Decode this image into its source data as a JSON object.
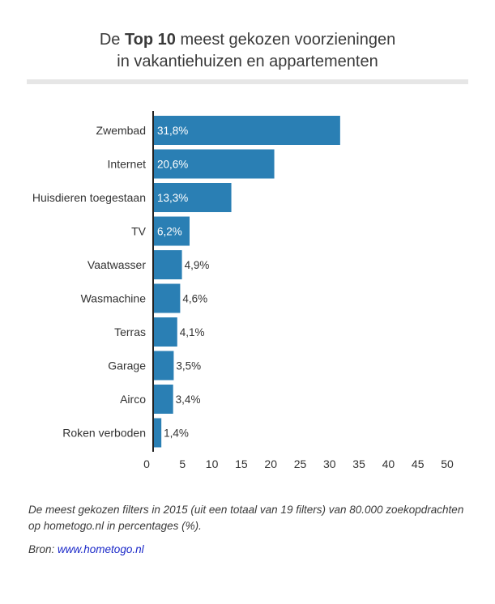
{
  "title": {
    "prefix": "De ",
    "bold": "Top 10",
    "suffix": " meest gekozen voorzieningen",
    "line2": "in vakantiehuizen en appartementen"
  },
  "colors": {
    "bar": "#2a7fb4",
    "axis": "#222222",
    "text": "#333333",
    "label_inside": "#ffffff"
  },
  "chart_data": {
    "type": "bar",
    "orientation": "horizontal",
    "title": "De Top 10 meest gekozen voorzieningen in vakantiehuizen en appartementen",
    "categories": [
      "Zwembad",
      "Internet",
      "Huisdieren toegestaan",
      "TV",
      "Vaatwasser",
      "Wasmachine",
      "Terras",
      "Garage",
      "Airco",
      "Roken verboden"
    ],
    "values": [
      31.8,
      20.6,
      13.3,
      6.2,
      4.9,
      4.6,
      4.1,
      3.5,
      3.4,
      1.4
    ],
    "value_labels": [
      "31,8%",
      "20,6%",
      "13,3%",
      "6,2%",
      "4,9%",
      "4,6%",
      "4,1%",
      "3,5%",
      "3,4%",
      "1,4%"
    ],
    "xlim": [
      0,
      50
    ],
    "xticks": [
      0,
      5,
      10,
      15,
      20,
      25,
      30,
      35,
      40,
      45,
      50
    ],
    "grid": false
  },
  "note": "De meest gekozen filters in 2015 (uit een totaal van 19 filters) van 80.000 zoekopdrachten op hometogo.nl in percentages (%).",
  "source": {
    "label": "Bron: ",
    "link_text": "www.hometogo.nl"
  }
}
